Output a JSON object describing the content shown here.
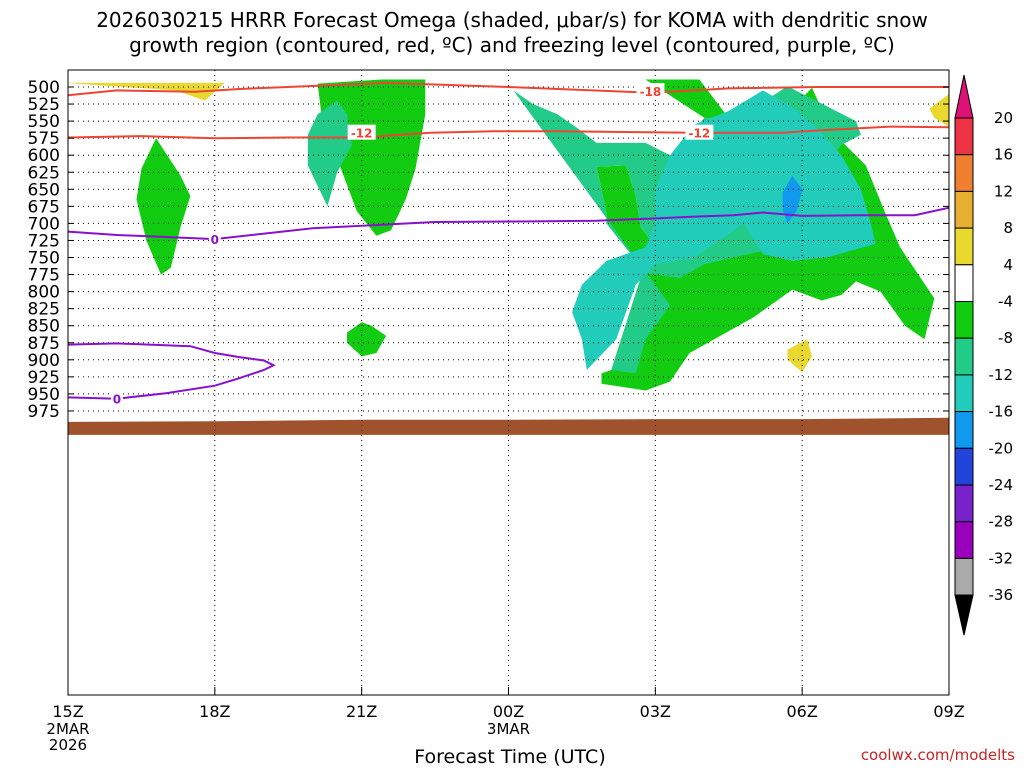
{
  "chart_data": {
    "type": "contour-timeheight",
    "title_line1": "2026030215 HRRR Forecast Omega (shaded, μbar/s) for KOMA with dendritic snow",
    "title_line2": "growth region (contoured, red, ºC) and freezing level (contoured, purple, ºC)",
    "xlabel": "Forecast Time (UTC)",
    "credit": "coolwx.com/modelts",
    "x_hours": [
      0,
      3,
      6,
      9,
      12,
      15,
      18
    ],
    "x_ticks": [
      "15Z",
      "18Z",
      "21Z",
      "00Z",
      "03Z",
      "06Z",
      "09Z"
    ],
    "x_sub_first": [
      "2MAR",
      "2026"
    ],
    "x_sub_mid": "3MAR",
    "y_ticks": [
      500,
      525,
      550,
      575,
      600,
      625,
      650,
      675,
      700,
      725,
      750,
      775,
      800,
      825,
      850,
      875,
      900,
      925,
      950,
      975
    ],
    "y_labels": [
      "500",
      "525",
      "550",
      "575",
      "600",
      "625",
      "650",
      "675",
      "700",
      "725",
      "750",
      "775",
      "800",
      "825",
      "850",
      "875",
      "900",
      "925",
      "950",
      "975"
    ],
    "colorbar": {
      "labels": [
        "20",
        "16",
        "12",
        "8",
        "4",
        "-4",
        "-8",
        "-12",
        "-16",
        "-20",
        "-24",
        "-28",
        "-32",
        "-36"
      ],
      "colors": [
        "#ee3344",
        "#f08030",
        "#e8b030",
        "#e8d830",
        "#ffffff",
        "#11cc11",
        "#22cc88",
        "#22ccbb",
        "#1199ee",
        "#2244dd",
        "#7722cc",
        "#9900bb",
        "#aaaaaa"
      ],
      "top_color": "#dd1177",
      "bottom_color": "#000000"
    },
    "omega_fill": [
      {
        "level": "4 to 8",
        "color": "#e8d830",
        "points": [
          [
            -0.1,
            494
          ],
          [
            3.2,
            494
          ],
          [
            2.8,
            520
          ],
          [
            2.2,
            505
          ]
        ]
      },
      {
        "level": "4 to 8",
        "color": "#e8d830",
        "points": [
          [
            17.6,
            532
          ],
          [
            18.1,
            505
          ],
          [
            18.2,
            542
          ],
          [
            18.0,
            558
          ],
          [
            17.7,
            545
          ]
        ]
      },
      {
        "level": "4 to 8",
        "color": "#e8d830",
        "points": [
          [
            14.7,
            885
          ],
          [
            15.1,
            870
          ],
          [
            15.2,
            895
          ],
          [
            15.0,
            918
          ],
          [
            14.7,
            900
          ]
        ]
      },
      {
        "level": "-4 to -8",
        "color": "#11cc11",
        "points": [
          [
            1.8,
            575
          ],
          [
            2.3,
            630
          ],
          [
            2.5,
            660
          ],
          [
            2.3,
            705
          ],
          [
            2.1,
            765
          ],
          [
            1.9,
            775
          ],
          [
            1.6,
            725
          ],
          [
            1.4,
            665
          ],
          [
            1.5,
            620
          ]
        ]
      },
      {
        "level": "-4 to -8",
        "color": "#11cc11",
        "points": [
          [
            6.4,
            489
          ],
          [
            7.3,
            489
          ],
          [
            7.3,
            540
          ],
          [
            7.1,
            620
          ],
          [
            6.9,
            665
          ],
          [
            6.6,
            710
          ],
          [
            6.3,
            718
          ],
          [
            5.9,
            682
          ],
          [
            5.5,
            605
          ],
          [
            5.2,
            552
          ],
          [
            5.1,
            495
          ]
        ]
      },
      {
        "level": "-4 to -8",
        "color": "#11cc11",
        "points": [
          [
            6.0,
            845
          ],
          [
            6.2,
            850
          ],
          [
            6.5,
            865
          ],
          [
            6.3,
            890
          ],
          [
            6.0,
            895
          ],
          [
            5.7,
            875
          ],
          [
            5.7,
            860
          ]
        ]
      },
      {
        "level": "-4 to -8",
        "color": "#11cc11",
        "points": [
          [
            11.8,
            489
          ],
          [
            12.9,
            489
          ],
          [
            13.6,
            555
          ],
          [
            14.0,
            625
          ],
          [
            15.0,
            590
          ],
          [
            14.8,
            531
          ],
          [
            15.2,
            501
          ],
          [
            15.6,
            565
          ],
          [
            16.3,
            615
          ],
          [
            16.7,
            685
          ],
          [
            17.0,
            735
          ],
          [
            17.7,
            810
          ],
          [
            17.5,
            870
          ],
          [
            17.1,
            850
          ],
          [
            16.6,
            800
          ],
          [
            16.1,
            785
          ],
          [
            15.8,
            805
          ],
          [
            15.4,
            813
          ],
          [
            14.8,
            797
          ],
          [
            14.0,
            838
          ],
          [
            13.4,
            862
          ],
          [
            12.7,
            890
          ],
          [
            12.3,
            932
          ],
          [
            11.8,
            945
          ],
          [
            10.9,
            935
          ],
          [
            10.9,
            920
          ],
          [
            11.1,
            915
          ],
          [
            11.7,
            780
          ],
          [
            11.5,
            745
          ],
          [
            11.0,
            700
          ],
          [
            11.0,
            685
          ],
          [
            10.8,
            617
          ],
          [
            11.4,
            615
          ],
          [
            11.6,
            660
          ],
          [
            11.7,
            705
          ],
          [
            11.9,
            725
          ],
          [
            12.3,
            715
          ],
          [
            12.4,
            690
          ],
          [
            12.5,
            625
          ],
          [
            12.7,
            575
          ],
          [
            13.0,
            545
          ]
        ]
      },
      {
        "level": "-8 to -12",
        "color": "#22cc88",
        "points": [
          [
            9.1,
            505
          ],
          [
            9.5,
            525
          ],
          [
            10.0,
            540
          ],
          [
            10.4,
            560
          ],
          [
            10.8,
            582
          ],
          [
            11.8,
            582
          ],
          [
            12.3,
            600
          ],
          [
            12.6,
            615
          ],
          [
            12.2,
            670
          ],
          [
            11.8,
            750
          ],
          [
            11.5,
            770
          ],
          [
            12.5,
            780
          ],
          [
            13.0,
            760
          ],
          [
            14.2,
            740
          ],
          [
            14.8,
            745
          ],
          [
            15.1,
            655
          ],
          [
            15.3,
            628
          ],
          [
            15.8,
            585
          ],
          [
            16.2,
            570
          ],
          [
            16.1,
            550
          ],
          [
            14.7,
            499
          ],
          [
            13.7,
            545
          ],
          [
            13.0,
            545
          ],
          [
            12.9,
            560
          ],
          [
            12.7,
            575
          ],
          [
            12.5,
            625
          ],
          [
            12.4,
            690
          ],
          [
            12.3,
            715
          ],
          [
            11.9,
            725
          ],
          [
            11.7,
            705
          ],
          [
            11.6,
            660
          ],
          [
            11.4,
            615
          ],
          [
            10.8,
            617
          ],
          [
            11.0,
            685
          ],
          [
            11.0,
            700
          ],
          [
            11.5,
            745
          ],
          [
            11.7,
            780
          ],
          [
            11.1,
            915
          ],
          [
            11.6,
            920
          ],
          [
            11.8,
            870
          ],
          [
            12.3,
            820
          ]
        ]
      },
      {
        "level": "-8 to -12",
        "color": "#22cc88",
        "points": [
          [
            5.5,
            520
          ],
          [
            5.7,
            540
          ],
          [
            5.8,
            585
          ],
          [
            5.5,
            625
          ],
          [
            5.3,
            675
          ],
          [
            5.1,
            645
          ],
          [
            4.9,
            615
          ],
          [
            4.9,
            570
          ],
          [
            5.1,
            540
          ]
        ]
      },
      {
        "level": "-12 to -16",
        "color": "#22ccbb",
        "points": [
          [
            12.8,
            555
          ],
          [
            13.5,
            535
          ],
          [
            14.2,
            505
          ],
          [
            14.8,
            530
          ],
          [
            15.3,
            560
          ],
          [
            15.8,
            600
          ],
          [
            16.2,
            650
          ],
          [
            16.4,
            700
          ],
          [
            16.5,
            730
          ],
          [
            15.5,
            750
          ],
          [
            14.8,
            755
          ],
          [
            14.2,
            745
          ],
          [
            13.8,
            700
          ],
          [
            13.4,
            720
          ],
          [
            12.8,
            750
          ],
          [
            12.0,
            760
          ],
          [
            11.6,
            790
          ],
          [
            11.4,
            830
          ],
          [
            11.2,
            870
          ],
          [
            10.6,
            915
          ],
          [
            10.5,
            870
          ],
          [
            10.3,
            830
          ],
          [
            10.5,
            790
          ],
          [
            11.0,
            755
          ],
          [
            11.8,
            735
          ],
          [
            12.0,
            700
          ],
          [
            12.0,
            650
          ],
          [
            12.3,
            600
          ]
        ]
      },
      {
        "level": "-16 to -20",
        "color": "#1199ee",
        "points": [
          [
            14.8,
            630
          ],
          [
            15.0,
            650
          ],
          [
            14.9,
            680
          ],
          [
            14.7,
            700
          ],
          [
            14.6,
            680
          ],
          [
            14.6,
            655
          ]
        ]
      }
    ],
    "dgz_lines": [
      {
        "label": "-18",
        "label_at": [
          11.9,
          506
        ],
        "points": [
          [
            0,
            512
          ],
          [
            1.0,
            505
          ],
          [
            2.6,
            507
          ],
          [
            3.5,
            503
          ],
          [
            6.5,
            494
          ],
          [
            9.0,
            500
          ],
          [
            11.8,
            508
          ],
          [
            12.3,
            507
          ],
          [
            13.5,
            502
          ],
          [
            15.3,
            500
          ],
          [
            18,
            500
          ]
        ]
      },
      {
        "label": "-12",
        "label_at": [
          6.0,
          567
        ],
        "label2": "-12",
        "label2_at": [
          12.9,
          567
        ],
        "points": [
          [
            0,
            574
          ],
          [
            1.5,
            572
          ],
          [
            3.0,
            575
          ],
          [
            4.5,
            574
          ],
          [
            6.0,
            574
          ],
          [
            7.4,
            567
          ],
          [
            8.7,
            565
          ],
          [
            10.0,
            565
          ],
          [
            12.8,
            567
          ],
          [
            14.6,
            567
          ],
          [
            15.5,
            563
          ],
          [
            16.8,
            558
          ],
          [
            18,
            559
          ]
        ]
      }
    ],
    "freezing_lines": [
      {
        "label": "0",
        "label_at": [
          3.0,
          723
        ],
        "points": [
          [
            0,
            712
          ],
          [
            1.0,
            717
          ],
          [
            2.0,
            720
          ],
          [
            3.0,
            723
          ],
          [
            5.0,
            707
          ],
          [
            7.5,
            698
          ],
          [
            9.5,
            697
          ],
          [
            10.8,
            696
          ],
          [
            11.9,
            693
          ],
          [
            12.8,
            690
          ],
          [
            13.6,
            688
          ],
          [
            14.2,
            684
          ],
          [
            15.0,
            689
          ],
          [
            16.2,
            688
          ],
          [
            17.3,
            688
          ],
          [
            18,
            677
          ]
        ]
      },
      {
        "label": "0",
        "label_at": [
          1.0,
          957
        ],
        "points": [
          [
            -0.1,
            955
          ],
          [
            1.0,
            957
          ],
          [
            2.0,
            949
          ],
          [
            3.0,
            938
          ],
          [
            3.5,
            927
          ],
          [
            4.0,
            915
          ],
          [
            4.2,
            908
          ],
          [
            4.0,
            901
          ],
          [
            3.5,
            896
          ],
          [
            3.0,
            890
          ],
          [
            2.5,
            880
          ],
          [
            1.0,
            876
          ],
          [
            -0.1,
            878
          ]
        ]
      }
    ],
    "ground_top": [
      [
        0,
        991
      ],
      [
        3,
        990
      ],
      [
        6,
        988
      ],
      [
        9,
        988
      ],
      [
        12,
        987
      ],
      [
        15,
        987
      ],
      [
        18,
        985
      ]
    ]
  }
}
